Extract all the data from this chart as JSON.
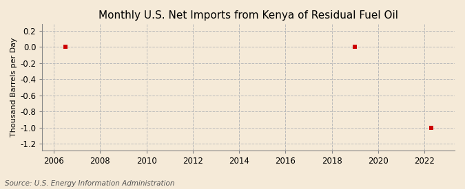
{
  "title": "Monthly U.S. Net Imports from Kenya of Residual Fuel Oil",
  "ylabel": "Thousand Barrels per Day",
  "source_text": "Source: U.S. Energy Information Administration",
  "data_x": [
    2006.5,
    2019.0,
    2022.3
  ],
  "data_y": [
    0.0,
    0.0,
    -1.0
  ],
  "marker_color": "#cc0000",
  "marker_size": 4,
  "xlim": [
    2005.5,
    2023.3
  ],
  "ylim": [
    -1.28,
    0.28
  ],
  "yticks": [
    0.2,
    0.0,
    -0.2,
    -0.4,
    -0.6,
    -0.8,
    -1.0,
    -1.2
  ],
  "xticks": [
    2006,
    2008,
    2010,
    2012,
    2014,
    2016,
    2018,
    2020,
    2022
  ],
  "background_color": "#f5ead8",
  "plot_bg_color": "#f5ead8",
  "grid_color": "#bbbbbb",
  "title_fontsize": 11,
  "label_fontsize": 8,
  "tick_fontsize": 8.5,
  "source_fontsize": 7.5
}
